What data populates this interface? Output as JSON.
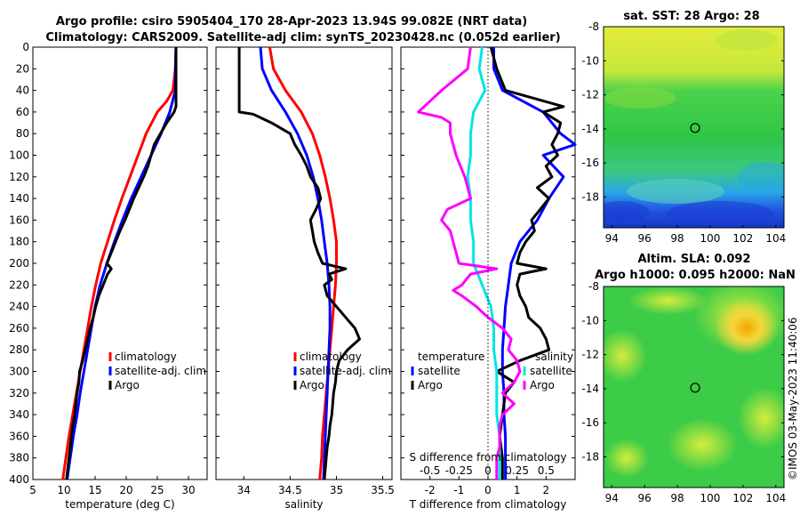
{
  "header": {
    "line1": "Argo profile: csiro 5905404_170 28-Apr-2023 13.94S 99.082E (NRT data)",
    "line2": "Climatology: CARS2009. Satellite-adj clim: synTS_20230428.nc (0.052d earlier)"
  },
  "credit": "©IMOS 03-May-2023 11:40:06",
  "colors": {
    "climatology": "#ff0000",
    "satellite": "#0000ff",
    "argo": "#000000",
    "salinity_diff": "#ff00ff",
    "temperature_diff": "#00e5e5"
  },
  "chart_data": [
    {
      "type": "line",
      "panel": "temperature",
      "xlabel": "temperature (deg C)",
      "ylabel": "",
      "xlim": [
        5,
        33
      ],
      "ylim": [
        400,
        0
      ],
      "xticks": [
        "5",
        "10",
        "15",
        "20",
        "25",
        "30"
      ],
      "yticks": [
        "0",
        "20",
        "40",
        "60",
        "80",
        "100",
        "120",
        "140",
        "160",
        "180",
        "200",
        "220",
        "240",
        "260",
        "280",
        "300",
        "320",
        "340",
        "360",
        "380",
        "400"
      ],
      "legend": [
        "climatology",
        "satellite-adj. clim",
        "Argo"
      ],
      "series": [
        {
          "name": "climatology",
          "color": "#ff0000",
          "depth": [
            0,
            20,
            40,
            50,
            60,
            80,
            100,
            120,
            140,
            160,
            180,
            200,
            220,
            240,
            260,
            280,
            300,
            320,
            340,
            360,
            380,
            400
          ],
          "values": [
            28.0,
            27.9,
            27.5,
            26.5,
            25.0,
            23.2,
            21.9,
            20.6,
            19.3,
            18.1,
            17.0,
            15.9,
            15.1,
            14.4,
            13.8,
            13.2,
            12.6,
            12.0,
            11.4,
            10.8,
            10.3,
            9.8
          ]
        },
        {
          "name": "satellite-adj. clim",
          "color": "#0000ff",
          "depth": [
            0,
            20,
            40,
            60,
            80,
            100,
            120,
            140,
            160,
            180,
            200,
            220,
            240,
            260,
            280,
            300,
            320,
            340,
            360,
            380,
            400
          ],
          "values": [
            28.0,
            27.9,
            27.9,
            27.0,
            25.6,
            24.0,
            22.4,
            20.8,
            19.4,
            18.1,
            16.9,
            15.8,
            15.0,
            14.4,
            13.8,
            13.2,
            12.6,
            12.1,
            11.5,
            11.0,
            10.5
          ]
        },
        {
          "name": "Argo",
          "color": "#000000",
          "depth": [
            0,
            20,
            40,
            55,
            60,
            70,
            80,
            90,
            100,
            110,
            120,
            130,
            140,
            150,
            160,
            170,
            180,
            190,
            200,
            205,
            210,
            220,
            230,
            240,
            250,
            260,
            270,
            280,
            290,
            300,
            310,
            320,
            330,
            340,
            350,
            360,
            370,
            380,
            390,
            400
          ],
          "values": [
            28.0,
            28.0,
            28.0,
            28.0,
            27.7,
            26.5,
            25.5,
            24.5,
            24.0,
            23.5,
            22.8,
            22.0,
            21.2,
            20.5,
            19.8,
            19.0,
            18.3,
            17.6,
            16.9,
            17.6,
            17.0,
            16.3,
            15.6,
            15.1,
            14.7,
            14.2,
            13.8,
            13.4,
            13.0,
            12.5,
            12.4,
            12.1,
            11.9,
            11.7,
            11.4,
            11.2,
            11.0,
            10.8,
            10.6,
            10.4
          ]
        }
      ]
    },
    {
      "type": "line",
      "panel": "salinity",
      "xlabel": "salinity",
      "xlim": [
        33.7,
        35.6
      ],
      "ylim": [
        400,
        0
      ],
      "xticks": [
        "34",
        "34.5",
        "35",
        "35.5"
      ],
      "legend": [
        "climatology",
        "satellite-adj. clim",
        "Argo"
      ],
      "series": [
        {
          "name": "climatology",
          "color": "#ff0000",
          "depth": [
            0,
            20,
            40,
            60,
            80,
            100,
            120,
            140,
            160,
            180,
            200,
            220,
            240,
            260,
            280,
            300,
            320,
            340,
            360,
            380,
            400
          ],
          "values": [
            34.28,
            34.32,
            34.45,
            34.62,
            34.74,
            34.82,
            34.88,
            34.93,
            34.97,
            35.0,
            35.0,
            34.99,
            34.97,
            34.95,
            34.93,
            34.91,
            34.89,
            34.87,
            34.85,
            34.84,
            34.82
          ]
        },
        {
          "name": "satellite-adj. clim",
          "color": "#0000ff",
          "depth": [
            0,
            20,
            40,
            60,
            80,
            100,
            120,
            140,
            160,
            180,
            200,
            220,
            240,
            260,
            280,
            300,
            320,
            340,
            360,
            380,
            400
          ],
          "values": [
            34.18,
            34.2,
            34.3,
            34.45,
            34.58,
            34.68,
            34.75,
            34.8,
            34.84,
            34.87,
            34.9,
            34.92,
            34.93,
            34.93,
            34.92,
            34.91,
            34.9,
            34.89,
            34.88,
            34.87,
            34.86
          ]
        },
        {
          "name": "Argo",
          "color": "#000000",
          "depth": [
            0,
            20,
            40,
            60,
            62,
            70,
            80,
            90,
            100,
            110,
            120,
            130,
            140,
            150,
            160,
            170,
            180,
            190,
            200,
            205,
            210,
            215,
            220,
            230,
            240,
            245,
            250,
            260,
            270,
            280,
            290,
            300,
            310,
            320,
            330,
            340,
            350,
            360,
            370,
            380,
            390,
            400
          ],
          "values": [
            33.95,
            33.95,
            33.95,
            33.95,
            34.1,
            34.3,
            34.5,
            34.55,
            34.62,
            34.68,
            34.72,
            34.8,
            34.83,
            34.78,
            34.72,
            34.74,
            34.76,
            34.8,
            34.85,
            35.1,
            34.92,
            34.95,
            34.87,
            34.9,
            35.0,
            35.05,
            35.1,
            35.2,
            35.25,
            35.12,
            35.03,
            35.0,
            34.99,
            34.97,
            34.96,
            34.95,
            34.93,
            34.92,
            34.9,
            34.89,
            34.88,
            34.87
          ]
        }
      ]
    },
    {
      "type": "line",
      "panel": "difference",
      "xlabel": "T difference from climatology",
      "xlabel_top": "S difference from climatology",
      "xlim": [
        -3,
        3
      ],
      "xlim_top": [
        -0.75,
        0.75
      ],
      "ylim": [
        400,
        0
      ],
      "xticks": [
        "-2",
        "-1",
        "0",
        "1",
        "2"
      ],
      "xticks_top": [
        "-0.5",
        "-0.25",
        "0",
        "0.25",
        "0.5"
      ],
      "legend_left_title": "temperature",
      "legend_right_title": "salinity",
      "legend_left": [
        "satellite",
        "Argo"
      ],
      "legend_right": [
        "satellite",
        "Argo"
      ],
      "series": [
        {
          "name": "T satellite",
          "color": "#0000ff",
          "scale": "T",
          "depth": [
            0,
            20,
            40,
            60,
            80,
            90,
            100,
            120,
            140,
            160,
            180,
            200,
            220,
            240,
            260,
            280,
            300,
            320,
            340,
            360,
            380,
            400
          ],
          "values": [
            0.2,
            0.2,
            0.5,
            1.9,
            2.5,
            3.0,
            1.9,
            2.6,
            2.1,
            1.7,
            1.1,
            0.8,
            0.7,
            0.6,
            0.55,
            0.5,
            0.5,
            0.55,
            0.55,
            0.6,
            0.6,
            0.6
          ]
        },
        {
          "name": "T Argo",
          "color": "#000000",
          "scale": "T",
          "depth": [
            0,
            20,
            40,
            55,
            60,
            70,
            80,
            90,
            100,
            110,
            120,
            130,
            140,
            150,
            160,
            170,
            180,
            190,
            200,
            205,
            210,
            220,
            230,
            240,
            250,
            260,
            270,
            280,
            290,
            300,
            310,
            320,
            340,
            360,
            380,
            400
          ],
          "values": [
            0.1,
            0.3,
            0.6,
            2.6,
            1.9,
            2.5,
            2.4,
            2.2,
            2.4,
            2.0,
            2.2,
            1.7,
            2.1,
            1.8,
            1.5,
            1.6,
            1.3,
            1.1,
            1.0,
            2.0,
            1.1,
            1.0,
            1.1,
            1.3,
            1.4,
            1.8,
            2.0,
            2.1,
            1.1,
            0.3,
            0.9,
            0.6,
            0.5,
            0.4,
            0.5,
            0.5
          ]
        },
        {
          "name": "S satellite",
          "color": "#00e5e5",
          "scale": "T",
          "depth": [
            0,
            20,
            40,
            60,
            80,
            100,
            120,
            140,
            160,
            180,
            200,
            220,
            240,
            260,
            280,
            300,
            320,
            340,
            360,
            380,
            400
          ],
          "values": [
            -0.2,
            -0.3,
            -0.1,
            -0.5,
            -0.6,
            -0.6,
            -0.7,
            -0.6,
            -0.6,
            -0.5,
            -0.5,
            -0.2,
            0.1,
            0.2,
            0.2,
            0.3,
            0.3,
            0.3,
            0.4,
            0.4,
            0.4
          ]
        },
        {
          "name": "S Argo",
          "color": "#ff00ff",
          "scale": "T",
          "depth": [
            0,
            20,
            40,
            50,
            60,
            65,
            70,
            80,
            100,
            120,
            140,
            150,
            160,
            170,
            180,
            190,
            200,
            205,
            210,
            220,
            225,
            230,
            240,
            250,
            260,
            270,
            280,
            290,
            300,
            310,
            320,
            330,
            340,
            350,
            360,
            370,
            380,
            390,
            400
          ],
          "values": [
            -0.6,
            -0.7,
            -1.6,
            -2.0,
            -2.4,
            -1.6,
            -1.3,
            -1.3,
            -1.1,
            -0.8,
            -0.6,
            -1.4,
            -1.6,
            -1.3,
            -1.2,
            -1.1,
            -1.0,
            0.3,
            -0.6,
            -0.9,
            -1.2,
            -0.9,
            -0.4,
            0.0,
            0.5,
            0.8,
            0.7,
            1.0,
            1.1,
            0.9,
            0.5,
            0.9,
            0.5,
            0.4,
            0.4,
            0.4,
            0.3,
            0.3,
            0.3
          ]
        }
      ]
    },
    {
      "type": "heatmap",
      "panel": "sst",
      "title": "sat. SST: 28 Argo: 28",
      "xlim": [
        93.5,
        104.5
      ],
      "ylim": [
        -19.8,
        -8
      ],
      "xticks": [
        "94",
        "96",
        "98",
        "100",
        "102",
        "104"
      ],
      "yticks": [
        "-8",
        "-10",
        "-12",
        "-14",
        "-16",
        "-18"
      ],
      "argo_position": [
        99.082,
        -13.94
      ]
    },
    {
      "type": "heatmap",
      "panel": "sla",
      "title_line1": "Altim. SLA: 0.092",
      "title_line2": "Argo h1000: 0.095 h2000: NaN",
      "xlim": [
        93.5,
        104.5
      ],
      "ylim": [
        -19.8,
        -8
      ],
      "xticks": [
        "94",
        "96",
        "98",
        "100",
        "102",
        "104"
      ],
      "yticks": [
        "-8",
        "-10",
        "-12",
        "-14",
        "-16",
        "-18"
      ],
      "argo_position": [
        99.082,
        -13.94
      ]
    }
  ]
}
